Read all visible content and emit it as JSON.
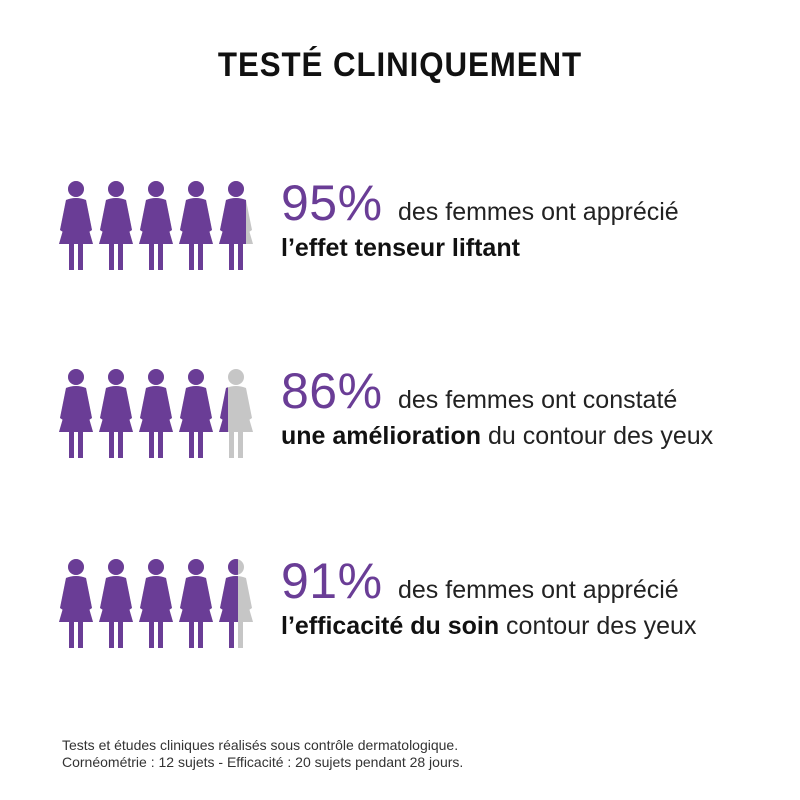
{
  "title": "TESTÉ CLINIQUEMENT",
  "colors": {
    "purple": "#6a3d96",
    "grey": "#c6c6c6",
    "text": "#222222"
  },
  "stats": [
    {
      "percent": "95%",
      "value": 95,
      "line1": "des femmes ont apprécié",
      "bold": "l’effet tenseur liftant",
      "rest": ""
    },
    {
      "percent": "86%",
      "value": 86,
      "line1": "des femmes ont constaté",
      "bold": "une amélioration",
      "rest": " du contour des yeux"
    },
    {
      "percent": "91%",
      "value": 91,
      "line1": "des femmes ont apprécié",
      "bold": "l’efficacité du soin",
      "rest": " contour des yeux"
    }
  ],
  "footer": {
    "line1": "Tests et études cliniques réalisés sous contrôle dermatologique.",
    "line2": "Cornéométrie : 12 sujets - Efficacité : 20 sujets pendant 28 jours."
  }
}
